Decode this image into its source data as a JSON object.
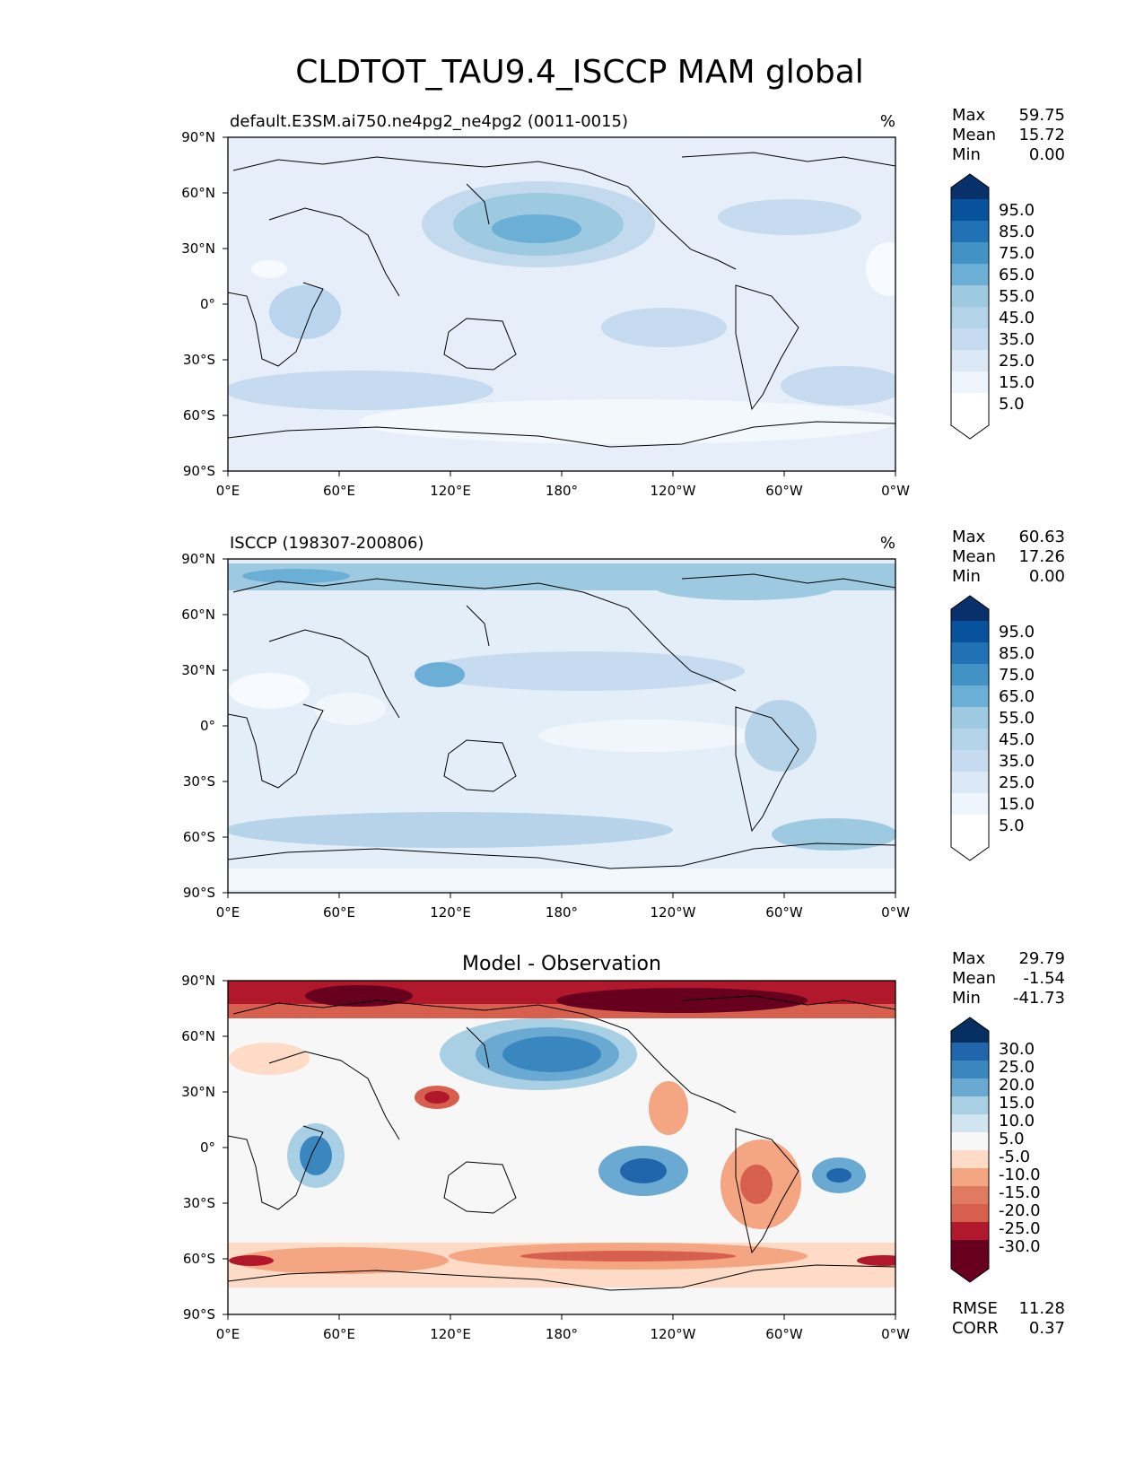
{
  "figure": {
    "title": "CLDTOT_TAU9.4_ISCCP MAM global",
    "lon_ticks": [
      "0°E",
      "60°E",
      "120°E",
      "180°",
      "120°W",
      "60°W",
      "0°W"
    ],
    "lat_ticks": [
      "90°N",
      "60°N",
      "30°N",
      "0°",
      "30°S",
      "60°S",
      "90°S"
    ]
  },
  "panels": [
    {
      "id": "model",
      "left_title": "default.E3SM.ai750.ne4pg2_ne4pg2 (0011-0015)",
      "center_title": "",
      "units": "%",
      "stats": [
        {
          "label": "Max",
          "value": "59.75"
        },
        {
          "label": "Mean",
          "value": "15.72"
        },
        {
          "label": "Min",
          "value": "0.00"
        }
      ],
      "colorbar_labels": [
        "95.0",
        "85.0",
        "75.0",
        "65.0",
        "55.0",
        "45.0",
        "35.0",
        "25.0",
        "15.0",
        "5.0"
      ],
      "colorbar_colors": [
        "#08306b",
        "#08519c",
        "#2171b5",
        "#4292c6",
        "#6baed6",
        "#9ecae1",
        "#b3d3e8",
        "#c6dbef",
        "#dbe9f6",
        "#eef5fc",
        "#ffffff"
      ]
    },
    {
      "id": "obs",
      "left_title": "ISCCP (198307-200806)",
      "center_title": "",
      "units": "%",
      "stats": [
        {
          "label": "Max",
          "value": "60.63"
        },
        {
          "label": "Mean",
          "value": "17.26"
        },
        {
          "label": "Min",
          "value": "0.00"
        }
      ],
      "colorbar_labels": [
        "95.0",
        "85.0",
        "75.0",
        "65.0",
        "55.0",
        "45.0",
        "35.0",
        "25.0",
        "15.0",
        "5.0"
      ],
      "colorbar_colors": [
        "#08306b",
        "#08519c",
        "#2171b5",
        "#4292c6",
        "#6baed6",
        "#9ecae1",
        "#b3d3e8",
        "#c6dbef",
        "#dbe9f6",
        "#eef5fc",
        "#ffffff"
      ]
    },
    {
      "id": "diff",
      "left_title": "",
      "center_title": "Model - Observation",
      "units": "",
      "stats": [
        {
          "label": "Max",
          "value": "29.79"
        },
        {
          "label": "Mean",
          "value": "-1.54"
        },
        {
          "label": "Min",
          "value": "-41.73"
        }
      ],
      "colorbar_labels": [
        "30.0",
        "25.0",
        "20.0",
        "15.0",
        "10.0",
        "5.0",
        "-5.0",
        "-10.0",
        "-15.0",
        "-20.0",
        "-25.0",
        "-30.0"
      ],
      "colorbar_colors": [
        "#053061",
        "#2166ac",
        "#3a87c0",
        "#6aa9d2",
        "#a9cfe5",
        "#d1e5f0",
        "#f7f7f7",
        "#fddbc7",
        "#f4a582",
        "#e07b62",
        "#d6604d",
        "#b2182b",
        "#67001f"
      ],
      "extra_stats": [
        {
          "label": "RMSE",
          "value": "11.28"
        },
        {
          "label": "CORR",
          "value": "0.37"
        }
      ]
    }
  ]
}
